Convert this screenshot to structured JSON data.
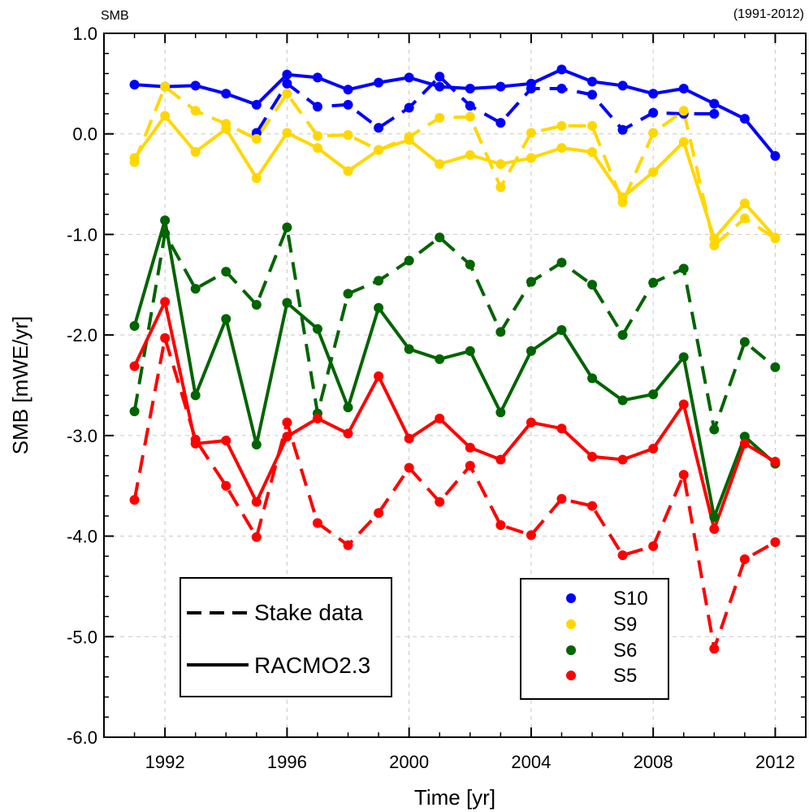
{
  "chart_data": {
    "type": "line",
    "title_left": "SMB",
    "title_right": "(1991-2012)",
    "xlabel": "Time [yr]",
    "ylabel": "SMB [mWE/yr]",
    "xlim": [
      1990,
      2013
    ],
    "ylim": [
      -6.0,
      1.0
    ],
    "xticks": [
      1992,
      1996,
      2000,
      2004,
      2008,
      2012
    ],
    "yticks": [
      1.0,
      0.0,
      -1.0,
      -2.0,
      -3.0,
      -4.0,
      -5.0,
      -6.0
    ],
    "ytick_labels": [
      "1.0",
      "0.0",
      "-1.0",
      "-2.0",
      "-3.0",
      "-4.0",
      "-5.0",
      "-6.0"
    ],
    "grid": true,
    "style_legend": {
      "entries": [
        {
          "label": "Stake data",
          "style": "dashed"
        },
        {
          "label": "RACMO2.3",
          "style": "solid"
        }
      ],
      "placement": "bottom-left"
    },
    "site_legend": {
      "entries": [
        {
          "label": "S10",
          "color": "#0000ff"
        },
        {
          "label": "S9",
          "color": "#ffd700"
        },
        {
          "label": "S6",
          "color": "#006400"
        },
        {
          "label": "S5",
          "color": "#ff0000"
        }
      ],
      "placement": "bottom-right"
    },
    "series": [
      {
        "site": "S10",
        "kind": "RACMO2.3",
        "color": "#0000ff",
        "dash": false,
        "x": [
          1991,
          1992,
          1993,
          1994,
          1995,
          1996,
          1997,
          1998,
          1999,
          2000,
          2001,
          2002,
          2003,
          2004,
          2005,
          2006,
          2007,
          2008,
          2009,
          2010,
          2011,
          2012
        ],
        "y": [
          0.49,
          0.47,
          0.48,
          0.4,
          0.29,
          0.59,
          0.56,
          0.44,
          0.51,
          0.56,
          0.47,
          0.45,
          0.47,
          0.5,
          0.64,
          0.52,
          0.48,
          0.4,
          0.45,
          0.3,
          0.15,
          -0.22
        ]
      },
      {
        "site": "S10",
        "kind": "Stake data",
        "color": "#0000ff",
        "dash": true,
        "x": [
          1995,
          1996,
          1997,
          1998,
          1999,
          2000,
          2001,
          2002,
          2003,
          2004,
          2005,
          2006,
          2007,
          2008,
          2009,
          2010
        ],
        "y": [
          0.01,
          0.5,
          0.27,
          0.29,
          0.06,
          0.26,
          0.57,
          0.28,
          0.11,
          0.45,
          0.45,
          0.39,
          0.04,
          0.21,
          0.2,
          0.2
        ]
      },
      {
        "site": "S9",
        "kind": "RACMO2.3",
        "color": "#ffd700",
        "dash": false,
        "x": [
          1991,
          1992,
          1993,
          1994,
          1995,
          1996,
          1997,
          1998,
          1999,
          2000,
          2001,
          2002,
          2003,
          2004,
          2005,
          2006,
          2007,
          2008,
          2009,
          2010,
          2011,
          2012
        ],
        "y": [
          -0.24,
          0.18,
          -0.18,
          0.05,
          -0.44,
          0.01,
          -0.14,
          -0.37,
          -0.16,
          -0.06,
          -0.3,
          -0.21,
          -0.3,
          -0.24,
          -0.14,
          -0.18,
          -0.63,
          -0.38,
          -0.08,
          -1.04,
          -0.69,
          -1.03
        ]
      },
      {
        "site": "S9",
        "kind": "Stake data",
        "color": "#ffd700",
        "dash": true,
        "x": [
          1991,
          1992,
          1993,
          1994,
          1995,
          1996,
          1997,
          1998,
          1999,
          2000,
          2001,
          2002,
          2003,
          2004,
          2005,
          2006,
          2007,
          2008,
          2009,
          2010,
          2011,
          2012
        ],
        "y": [
          -0.28,
          0.47,
          0.23,
          0.1,
          -0.05,
          0.4,
          -0.02,
          -0.01,
          -0.16,
          -0.03,
          0.16,
          0.17,
          -0.53,
          0.01,
          0.08,
          0.08,
          -0.68,
          0.01,
          0.23,
          -1.11,
          -0.84,
          -1.04
        ]
      },
      {
        "site": "S6",
        "kind": "RACMO2.3",
        "color": "#006400",
        "dash": false,
        "x": [
          1991,
          1992,
          1993,
          1994,
          1995,
          1996,
          1997,
          1998,
          1999,
          2000,
          2001,
          2002,
          2003,
          2004,
          2005,
          2006,
          2007,
          2008,
          2009,
          2010,
          2011,
          2012
        ],
        "y": [
          -1.91,
          -0.86,
          -2.6,
          -1.84,
          -3.09,
          -1.68,
          -1.94,
          -2.72,
          -1.73,
          -2.14,
          -2.24,
          -2.16,
          -2.77,
          -2.16,
          -1.95,
          -2.43,
          -2.65,
          -2.59,
          -2.22,
          -3.81,
          -3.01,
          -3.28
        ]
      },
      {
        "site": "S6",
        "kind": "Stake data",
        "color": "#006400",
        "dash": true,
        "x": [
          1991,
          1992,
          1993,
          1994,
          1995,
          1996,
          1997,
          1998,
          1999,
          2000,
          2001,
          2002,
          2003,
          2004,
          2005,
          2006,
          2007,
          2008,
          2009,
          2010,
          2011,
          2012
        ],
        "y": [
          -2.76,
          -0.99,
          -1.54,
          -1.37,
          -1.7,
          -0.93,
          -2.78,
          -1.59,
          -1.46,
          -1.26,
          -1.03,
          -1.3,
          -1.97,
          -1.47,
          -1.28,
          -1.5,
          -2.0,
          -1.48,
          -1.34,
          -2.94,
          -2.07,
          -2.32
        ]
      },
      {
        "site": "S5",
        "kind": "RACMO2.3",
        "color": "#ff0000",
        "dash": false,
        "x": [
          1991,
          1992,
          1993,
          1994,
          1995,
          1996,
          1997,
          1998,
          1999,
          2000,
          2001,
          2002,
          2003,
          2004,
          2005,
          2006,
          2007,
          2008,
          2009,
          2010,
          2011,
          2012
        ],
        "y": [
          -2.31,
          -1.67,
          -3.08,
          -3.05,
          -3.66,
          -3.01,
          -2.83,
          -2.98,
          -2.41,
          -3.03,
          -2.83,
          -3.12,
          -3.24,
          -2.87,
          -2.93,
          -3.21,
          -3.24,
          -3.13,
          -2.69,
          -3.93,
          -3.08,
          -3.26
        ]
      },
      {
        "site": "S5",
        "kind": "Stake data",
        "color": "#ff0000",
        "dash": true,
        "x": [
          1991,
          1992,
          1993,
          1994,
          1995,
          1996,
          1997,
          1998,
          1999,
          2000,
          2001,
          2002,
          2003,
          2004,
          2005,
          2006,
          2007,
          2008,
          2009,
          2010,
          2011,
          2012
        ],
        "y": [
          -3.64,
          -2.03,
          -3.04,
          -3.5,
          -4.01,
          -2.87,
          -3.87,
          -4.09,
          -3.77,
          -3.32,
          -3.66,
          -3.3,
          -3.89,
          -3.99,
          -3.63,
          -3.7,
          -4.19,
          -4.1,
          -3.39,
          -5.12,
          -4.23,
          -4.06
        ]
      }
    ]
  }
}
